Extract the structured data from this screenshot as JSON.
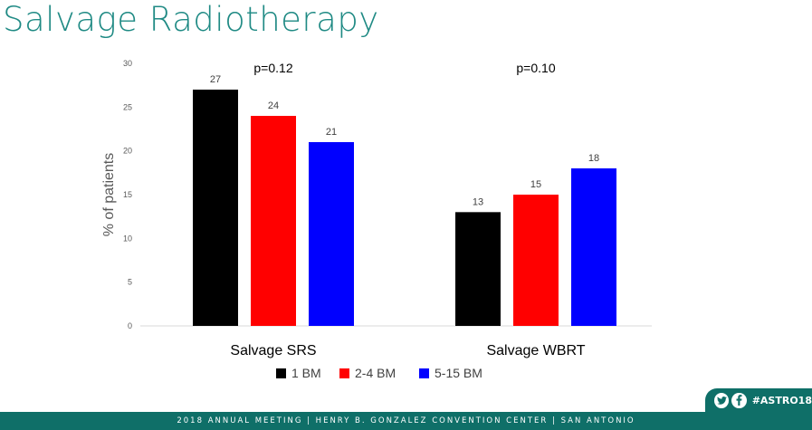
{
  "slide": {
    "title": "Salvage Radiotherapy"
  },
  "chart_data": {
    "type": "bar",
    "categories": [
      "Salvage SRS",
      "Salvage WBRT"
    ],
    "series": [
      {
        "name": "1 BM",
        "values": [
          27,
          13
        ],
        "color": "#000000"
      },
      {
        "name": "2-4 BM",
        "values": [
          24,
          15
        ],
        "color": "#ff0000"
      },
      {
        "name": "5-15 BM",
        "values": [
          21,
          18
        ],
        "color": "#0000ff"
      }
    ],
    "ylabel": "% of patients",
    "ylim": [
      0,
      30
    ],
    "yticks": [
      0,
      5,
      10,
      15,
      20,
      25,
      30
    ],
    "annotations": [
      "p=0.12",
      "p=0.10"
    ],
    "grid": false,
    "legend": "bottom-center"
  },
  "footer": {
    "text": "2018 ANNUAL MEETING  |  HENRY B. GONZALEZ CONVENTION CENTER  |  SAN ANTONIO"
  },
  "badge": {
    "hashtag": "#ASTRO18",
    "icons": [
      "twitter-icon",
      "facebook-icon"
    ]
  }
}
